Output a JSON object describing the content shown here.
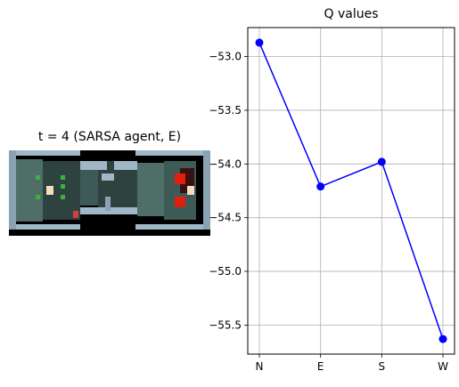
{
  "left_panel": {
    "title": "t = 4 (SARSA agent, E)"
  },
  "chart_data": {
    "type": "line",
    "title": "Q values",
    "xlabel": "",
    "ylabel": "",
    "categories": [
      "N",
      "E",
      "S",
      "W"
    ],
    "series": [
      {
        "values": [
          -52.87,
          -54.21,
          -53.98,
          -55.63
        ],
        "color": "#0000ff"
      }
    ],
    "ylim": [
      -55.77,
      -52.73
    ],
    "yticks": [
      -53.0,
      -53.5,
      -54.0,
      -54.5,
      -55.0,
      -55.5
    ],
    "ytick_labels": [
      "−53.0",
      "−53.5",
      "−54.0",
      "−54.5",
      "−55.0",
      "−55.5"
    ],
    "grid": true
  }
}
